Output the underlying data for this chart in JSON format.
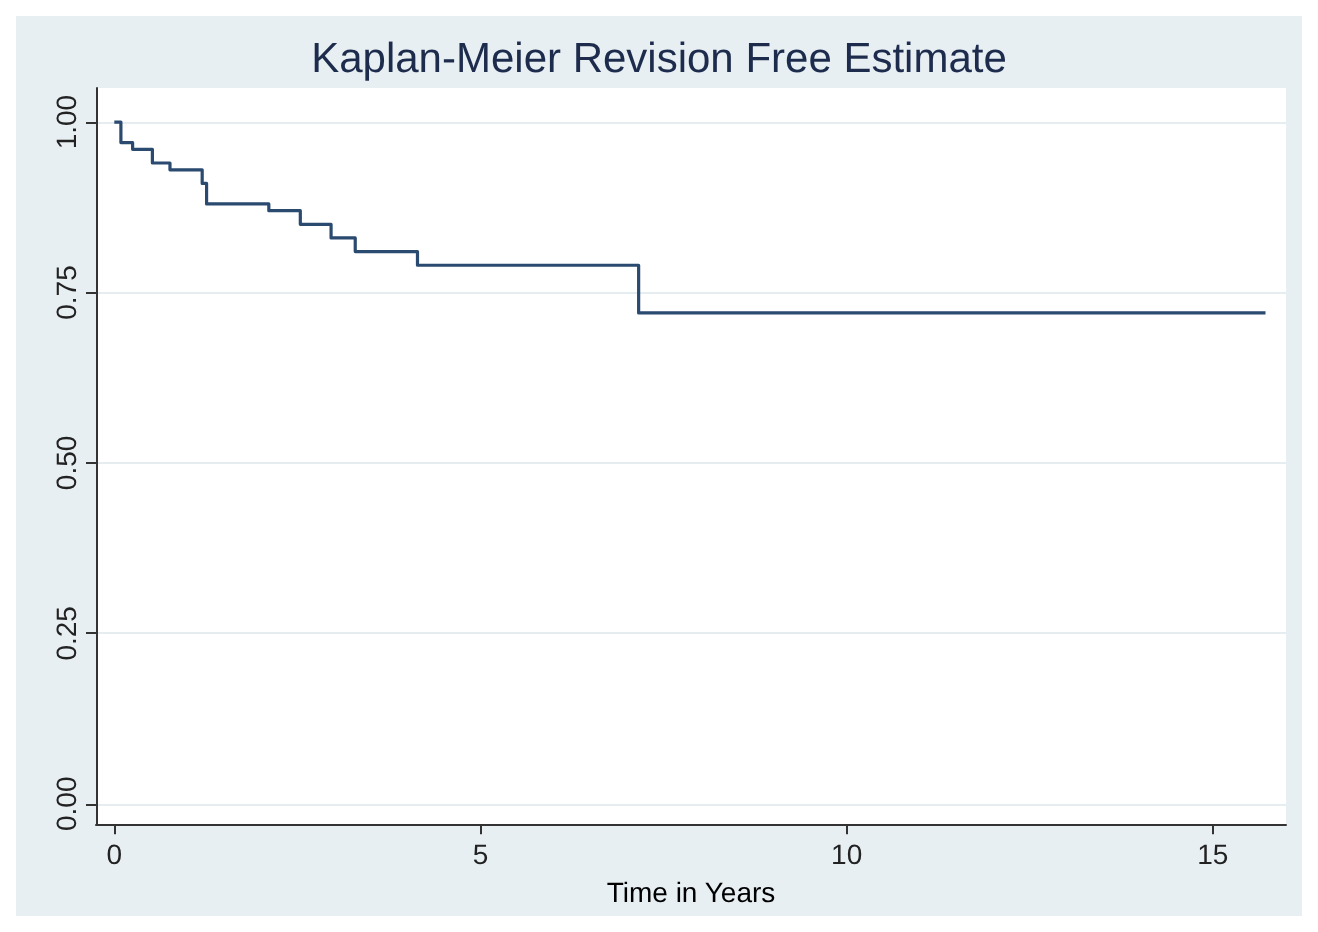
{
  "chart_data": {
    "type": "step",
    "title": "Kaplan-Meier Revision Free Estimate",
    "xlabel": "Time in Years",
    "x": [
      0,
      0.09,
      0.25,
      0.52,
      0.76,
      1.2,
      1.26,
      2.11,
      2.54,
      2.96,
      3.29,
      4.14,
      7.16,
      15.72
    ],
    "series": [
      {
        "color": "#2b4a6f",
        "values": [
          1.0,
          0.97,
          0.96,
          0.94,
          0.93,
          0.91,
          0.88,
          0.87,
          0.85,
          0.83,
          0.81,
          0.79,
          0.72,
          0.72
        ]
      }
    ],
    "xlim": [
      -0.25,
      16
    ],
    "xticks": [
      0,
      5,
      10,
      15
    ],
    "ylim": [
      -0.03,
      1.05
    ],
    "yticks": [
      {
        "value": 0,
        "label": "0.00"
      },
      {
        "value": 0.25,
        "label": "0.25"
      },
      {
        "value": 0.5,
        "label": "0.50"
      },
      {
        "value": 0.75,
        "label": "0.75"
      },
      {
        "value": 1,
        "label": "1.00"
      }
    ],
    "grid": "y",
    "marker": "none",
    "line_style": "solid"
  }
}
